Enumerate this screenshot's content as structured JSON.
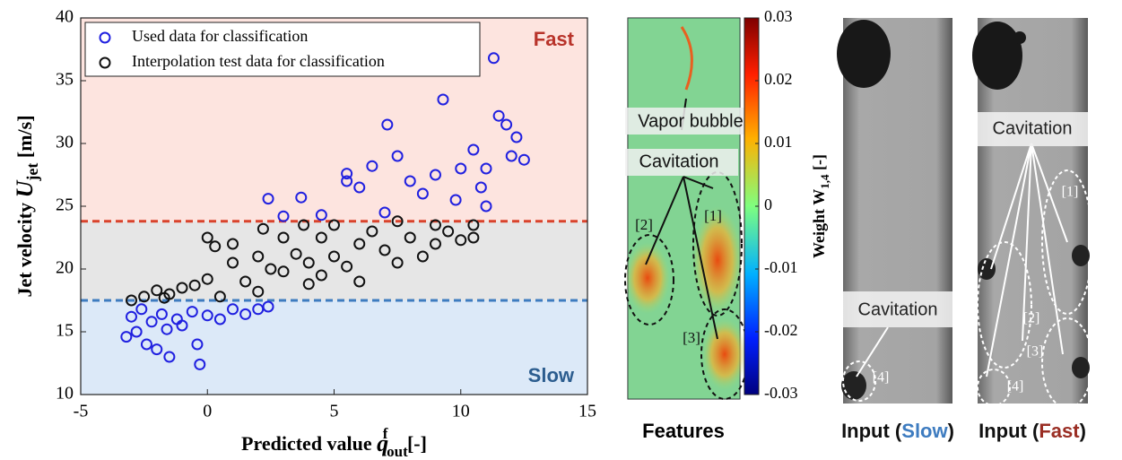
{
  "chart_data": [
    {
      "type": "scatter",
      "xlabel": [
        "Predicted value ",
        "q",
        "out",
        "f",
        " [-]"
      ],
      "ylabel": [
        "Jet velocity ",
        "U",
        "jet",
        " [m/s]"
      ],
      "xlim": [
        -5,
        15
      ],
      "xticks": [
        -5,
        0,
        5,
        10,
        15
      ],
      "ylim": [
        10,
        40
      ],
      "yticks": [
        10,
        15,
        20,
        25,
        30,
        35,
        40
      ],
      "regions": [
        {
          "from": 23.8,
          "to": 40,
          "color": "#fde4df"
        },
        {
          "from": 17.5,
          "to": 23.8,
          "color": "#e6e6e6"
        },
        {
          "from": 10,
          "to": 17.5,
          "color": "#dce9f8"
        }
      ],
      "thresholds": [
        {
          "value": 23.8,
          "color": "#d9432c"
        },
        {
          "value": 17.5,
          "color": "#3e7cc0"
        }
      ],
      "region_labels": [
        {
          "text": "Fast",
          "color": "#b8332a"
        },
        {
          "text": "Slow",
          "color": "#2c5d8f"
        }
      ],
      "legend": "upper left",
      "series": [
        {
          "name": "Used data for classification",
          "color": "#2020e0",
          "x": [
            -3.2,
            -3,
            -2.8,
            -2.6,
            -2.4,
            -2.2,
            -2,
            -1.8,
            -1.6,
            -1.5,
            -1.2,
            -1,
            -0.6,
            -0.4,
            -0.3,
            0,
            0.5,
            1,
            1.5,
            2,
            2.4,
            2.4,
            3.7,
            5.5,
            5.5,
            6,
            6.5,
            7.1,
            7.5,
            8,
            8.5,
            9,
            9.3,
            9.8,
            10,
            10.5,
            10.8,
            11,
            11.3,
            11.5,
            11.8,
            12,
            12.2,
            12.5,
            11,
            7,
            4.5,
            3
          ],
          "y": [
            14.6,
            16.2,
            15,
            16.8,
            14,
            15.8,
            13.6,
            16.4,
            15.2,
            13,
            16,
            15.5,
            16.6,
            14,
            12.4,
            16.3,
            16,
            16.8,
            16.4,
            16.8,
            17,
            25.6,
            25.7,
            27.6,
            27,
            26.5,
            28.2,
            31.5,
            29,
            27,
            26,
            27.5,
            33.5,
            25.5,
            28,
            29.5,
            26.5,
            28,
            36.8,
            32.2,
            31.5,
            29,
            30.5,
            28.7,
            25,
            24.5,
            24.3,
            24.2
          ]
        },
        {
          "name": "Interpolation test data for classification",
          "color": "#111111",
          "x": [
            -3,
            -2.5,
            -2,
            -1.5,
            -1,
            -0.5,
            0,
            0,
            0.3,
            0.5,
            1,
            1.5,
            2,
            2,
            2.5,
            3,
            3,
            3.5,
            3.8,
            4,
            4.5,
            4.5,
            5,
            5,
            5.5,
            6,
            6,
            6.5,
            7,
            7.5,
            7.5,
            8,
            8.5,
            9,
            9,
            9.5,
            10,
            10.5,
            10.5,
            2.2,
            1,
            4,
            -1.7
          ],
          "y": [
            17.5,
            17.8,
            18.3,
            18,
            18.5,
            18.7,
            19.2,
            22.5,
            21.8,
            17.8,
            20.5,
            19,
            18.2,
            21,
            20,
            19.8,
            22.5,
            21.2,
            23.5,
            20.5,
            19.5,
            22.5,
            21,
            23.5,
            20.2,
            22,
            19,
            23,
            21.5,
            23.8,
            20.5,
            22.5,
            21,
            23.5,
            22,
            23,
            22.3,
            23.5,
            22.5,
            23.2,
            22,
            18.8,
            17.7
          ]
        }
      ]
    },
    {
      "type": "heatmap",
      "xlabel": "Features",
      "ylabel": [
        "Weight W",
        "1,4",
        " [-]"
      ],
      "ylim": [
        -0.03,
        0.03
      ],
      "yticks": [
        0.03,
        0.02,
        0.01,
        0,
        -0.01,
        -0.02,
        -0.03
      ],
      "annotations": [
        "Vapor bubble",
        "Cavitation",
        "[1]",
        "[2]",
        "[3]"
      ]
    }
  ],
  "panels": [
    {
      "caption": [
        "Input (",
        "Slow",
        ")"
      ],
      "annotations": [
        "Cavitation",
        "[4]"
      ]
    },
    {
      "caption": [
        "Input (",
        "Fast",
        ")"
      ],
      "annotations": [
        "Cavitation",
        "[1]",
        "[2]",
        "[3]",
        "[4]"
      ]
    }
  ]
}
